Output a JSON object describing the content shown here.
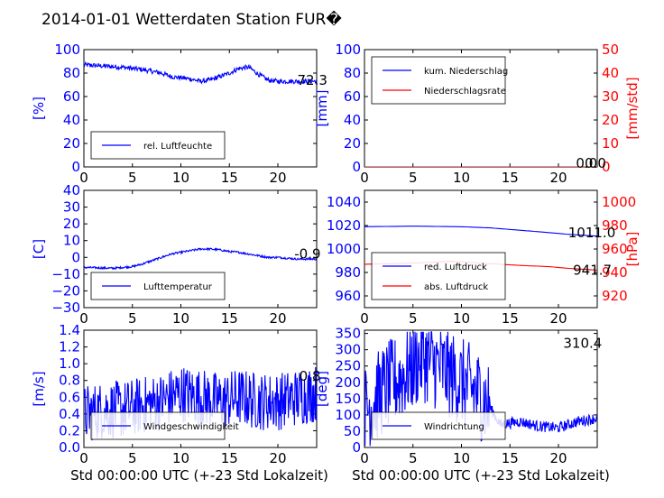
{
  "page": {
    "title": "2014-01-01 Wetterdaten Station FUR�",
    "xlabel": "Std 00:00:00 UTC (+-23 Std Lokalzeit)"
  },
  "colors": {
    "blue": "#0000ff",
    "red": "#ff0000",
    "black": "#000000"
  },
  "chart_data": [
    {
      "id": "humidity",
      "type": "line",
      "ylabel": "[%]",
      "ylabel_color": "#0000ff",
      "xlim": [
        0,
        24
      ],
      "ylim": [
        0,
        100
      ],
      "xticks": [
        "0",
        "5",
        "10",
        "15",
        "20"
      ],
      "yticks": [
        "0",
        "20",
        "40",
        "60",
        "80",
        "100"
      ],
      "legend_position": "lower-left",
      "series": [
        {
          "name": "rel. Luftfeuchte",
          "color": "#0000ff",
          "noise": 2,
          "points": [
            [
              0,
              87
            ],
            [
              2,
              86
            ],
            [
              4,
              85
            ],
            [
              6,
              83
            ],
            [
              8,
              80
            ],
            [
              9,
              77
            ],
            [
              10,
              76
            ],
            [
              11,
              75
            ],
            [
              12,
              73
            ],
            [
              13,
              74
            ],
            [
              14,
              77
            ],
            [
              15,
              80
            ],
            [
              16,
              84
            ],
            [
              17,
              85
            ],
            [
              18,
              79
            ],
            [
              19,
              74
            ],
            [
              20,
              73
            ],
            [
              22,
              73
            ],
            [
              24,
              73
            ]
          ]
        }
      ],
      "annotations": [
        {
          "text": "72.3",
          "x": 22.0,
          "y": 74
        }
      ]
    },
    {
      "id": "precip",
      "type": "line",
      "ylabel": "[mm]",
      "ylabel_color": "#0000ff",
      "ylabel2": "[mm/std]",
      "ylabel2_color": "#ff0000",
      "xlim": [
        0,
        24
      ],
      "ylim": [
        0,
        100
      ],
      "ylim2": [
        0,
        50
      ],
      "xticks": [
        "0",
        "5",
        "10",
        "15",
        "20"
      ],
      "yticks": [
        "0",
        "20",
        "40",
        "60",
        "80",
        "100"
      ],
      "yticks2": [
        "0",
        "10",
        "20",
        "30",
        "40",
        "50"
      ],
      "legend_position": "upper-left",
      "series": [
        {
          "name": "kum. Niederschlag",
          "color": "#0000ff",
          "points": [
            [
              0,
              0
            ],
            [
              24,
              0
            ]
          ]
        },
        {
          "name": "Niederschlagsrate",
          "color": "#ff0000",
          "points": [
            [
              0,
              0
            ],
            [
              24,
              0
            ]
          ]
        }
      ],
      "annotations": [
        {
          "text": "0.0",
          "x": 21.8,
          "y": 3
        },
        {
          "text": "0.0",
          "x": 22.7,
          "y": 3
        }
      ]
    },
    {
      "id": "temperature",
      "type": "line",
      "ylabel": "[C]",
      "ylabel_color": "#0000ff",
      "xlim": [
        0,
        24
      ],
      "ylim": [
        -30,
        40
      ],
      "xticks": [
        "0",
        "5",
        "10",
        "15",
        "20"
      ],
      "yticks": [
        "−30",
        "−20",
        "−10",
        "0",
        "10",
        "20",
        "30",
        "40"
      ],
      "ytick_values": [
        -30,
        -20,
        -10,
        0,
        10,
        20,
        30,
        40
      ],
      "legend_position": "lower-left",
      "series": [
        {
          "name": "Lufttemperatur",
          "color": "#0000ff",
          "noise": 0.6,
          "points": [
            [
              0,
              -6
            ],
            [
              3,
              -6.5
            ],
            [
              5,
              -5.5
            ],
            [
              6,
              -4
            ],
            [
              7,
              -2
            ],
            [
              8,
              0
            ],
            [
              9,
              2
            ],
            [
              10,
              3
            ],
            [
              11,
              4
            ],
            [
              12,
              5
            ],
            [
              13,
              5
            ],
            [
              14,
              4.5
            ],
            [
              15,
              3.5
            ],
            [
              16,
              3
            ],
            [
              17,
              2
            ],
            [
              18,
              1
            ],
            [
              19,
              0
            ],
            [
              20,
              0
            ],
            [
              22,
              -1
            ],
            [
              24,
              -1
            ]
          ]
        }
      ],
      "annotations": [
        {
          "text": "-0.9",
          "x": 21.7,
          "y": 2
        }
      ]
    },
    {
      "id": "pressure",
      "type": "line",
      "ylabel": "",
      "ylabel_color": "#0000ff",
      "ylabel2": "[hPa]",
      "ylabel2_color": "#ff0000",
      "xlim": [
        0,
        24
      ],
      "ylim": [
        950,
        1050
      ],
      "ylim2": [
        910,
        1010
      ],
      "xticks": [
        "0",
        "5",
        "10",
        "15",
        "20"
      ],
      "yticks": [
        "960",
        "980",
        "1000",
        "1020",
        "1040"
      ],
      "ytick_values": [
        960,
        980,
        1000,
        1020,
        1040
      ],
      "yticks2": [
        "920",
        "940",
        "960",
        "980",
        "1000"
      ],
      "ytick2_values": [
        920,
        940,
        960,
        980,
        1000
      ],
      "legend_position": "lower-left",
      "series": [
        {
          "name": "red. Luftdruck",
          "color": "#0000ff",
          "points": [
            [
              0,
              1019
            ],
            [
              5,
              1019.5
            ],
            [
              10,
              1019
            ],
            [
              13,
              1018
            ],
            [
              16,
              1016
            ],
            [
              19,
              1014
            ],
            [
              21,
              1012.5
            ],
            [
              24,
              1011
            ]
          ]
        },
        {
          "name": "abs. Luftdruck",
          "color": "#ff0000",
          "axis": 2,
          "points": [
            [
              0,
              947
            ],
            [
              5,
              948
            ],
            [
              9,
              949.5
            ],
            [
              12,
              948
            ],
            [
              16,
              946
            ],
            [
              19,
              945
            ],
            [
              21,
              943.5
            ],
            [
              24,
              942
            ]
          ]
        }
      ],
      "annotations": [
        {
          "text": "1011.0",
          "x": 21.0,
          "y": 1014
        },
        {
          "text": "941.7",
          "x": 21.5,
          "y": 982
        }
      ]
    },
    {
      "id": "windspeed",
      "type": "line",
      "ylabel": "[m/s]",
      "ylabel_color": "#0000ff",
      "xlim": [
        0,
        24
      ],
      "ylim": [
        0,
        1.4
      ],
      "xticks": [
        "0",
        "5",
        "10",
        "15",
        "20"
      ],
      "yticks": [
        "0.0",
        "0.2",
        "0.4",
        "0.6",
        "0.8",
        "1.0",
        "1.2",
        "1.4"
      ],
      "ytick_values": [
        0,
        0.2,
        0.4,
        0.6,
        0.8,
        1.0,
        1.2,
        1.4
      ],
      "legend_position": "lower-left",
      "series": [
        {
          "name": "Windgeschwindigkeit",
          "color": "#0000ff",
          "noise": 0.35,
          "floor": 0,
          "ceil": 1.32,
          "points": [
            [
              0,
              0.4
            ],
            [
              2,
              0.45
            ],
            [
              4,
              0.45
            ],
            [
              6,
              0.5
            ],
            [
              8,
              0.55
            ],
            [
              10,
              0.65
            ],
            [
              12,
              0.6
            ],
            [
              14,
              0.55
            ],
            [
              16,
              0.6
            ],
            [
              18,
              0.55
            ],
            [
              20,
              0.55
            ],
            [
              22,
              0.6
            ],
            [
              24,
              0.65
            ]
          ]
        }
      ],
      "annotations": [
        {
          "text": "0.8",
          "x": 22.2,
          "y": 0.85
        }
      ]
    },
    {
      "id": "winddir",
      "type": "line",
      "ylabel": "[deg]",
      "ylabel_color": "#0000ff",
      "xlim": [
        0,
        24
      ],
      "ylim": [
        0,
        360
      ],
      "xticks": [
        "0",
        "5",
        "10",
        "15",
        "20"
      ],
      "yticks": [
        "0",
        "50",
        "100",
        "150",
        "200",
        "250",
        "300",
        "350"
      ],
      "ytick_values": [
        0,
        50,
        100,
        150,
        200,
        250,
        300,
        350
      ],
      "legend_position": "lower-left",
      "series": [
        {
          "name": "Windrichtung",
          "color": "#0000ff",
          "noise": 140,
          "floor": 5,
          "ceil": 355,
          "noise_until": 13,
          "points": [
            [
              0,
              110
            ],
            [
              2,
              180
            ],
            [
              4,
              220
            ],
            [
              6,
              280
            ],
            [
              8,
              240
            ],
            [
              10,
              200
            ],
            [
              12,
              160
            ],
            [
              13,
              120
            ],
            [
              14,
              70
            ],
            [
              16,
              80
            ],
            [
              18,
              65
            ],
            [
              20,
              60
            ],
            [
              22,
              80
            ],
            [
              24,
              90
            ]
          ]
        }
      ],
      "annotations": [
        {
          "text": "310.4",
          "x": 20.5,
          "y": 320
        }
      ]
    }
  ]
}
